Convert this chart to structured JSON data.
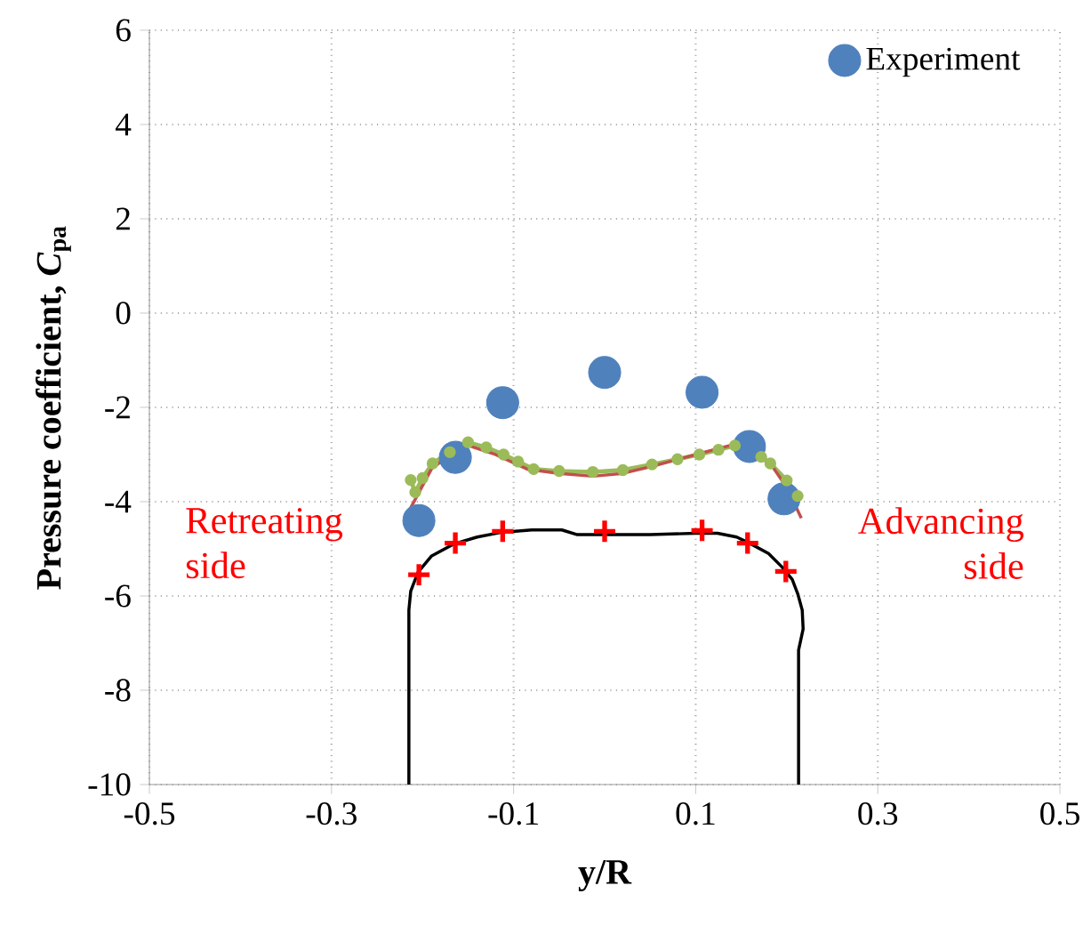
{
  "chart_data": {
    "type": "scatter",
    "xlabel": "y/R",
    "ylabel": "Pressure coefficient, *C*$_{pa}$",
    "xlim": [
      -0.5,
      0.5
    ],
    "ylim": [
      -10,
      6
    ],
    "xticks": [
      -0.5,
      -0.3,
      -0.1,
      0.1,
      0.3,
      0.5
    ],
    "yticks": [
      -10,
      -8,
      -6,
      -4,
      -2,
      0,
      2,
      4,
      6
    ],
    "grid": true,
    "legend": "top right",
    "annotations": [
      "Retreating side",
      "Advancing side"
    ],
    "series": [
      {
        "name": "Experiment",
        "marker": "circle",
        "color": "#4f81bd",
        "x": [
          -0.204,
          -0.164,
          -0.112,
          0.0,
          0.107,
          0.159,
          0.197
        ],
        "values": [
          -4.4,
          -3.06,
          -1.9,
          -1.26,
          -1.68,
          -2.83,
          -3.94
        ]
      },
      {
        "type": "line",
        "marker": "none",
        "color": "#c0504d",
        "x": [
          -0.213,
          -0.19,
          -0.154,
          -0.12,
          -0.085,
          -0.05,
          -0.013,
          0.02,
          0.052,
          0.1,
          0.143,
          0.182,
          0.2,
          0.216
        ],
        "values": [
          -4.13,
          -3.3,
          -2.78,
          -3.0,
          -3.31,
          -3.4,
          -3.46,
          -3.4,
          -3.25,
          -3.0,
          -2.78,
          -3.19,
          -3.7,
          -4.35
        ]
      },
      {
        "type": "line",
        "marker": "circle",
        "color": "#9bbb59",
        "x": [
          -0.213,
          -0.208,
          -0.2,
          -0.189,
          -0.17,
          -0.15,
          -0.13,
          -0.111,
          -0.095,
          -0.078,
          -0.05,
          -0.013,
          0.02,
          0.052,
          0.08,
          0.104,
          0.125,
          0.143,
          0.172,
          0.182,
          0.2,
          0.212
        ],
        "values": [
          -3.54,
          -3.8,
          -3.5,
          -3.19,
          -2.95,
          -2.74,
          -2.85,
          -3.0,
          -3.15,
          -3.31,
          -3.35,
          -3.37,
          -3.33,
          -3.21,
          -3.1,
          -3.0,
          -2.9,
          -2.81,
          -3.05,
          -3.19,
          -3.55,
          -3.88
        ]
      },
      {
        "type": "line",
        "marker": "none",
        "color": "#000000",
        "x": [
          -0.215,
          -0.215,
          -0.213,
          -0.205,
          -0.19,
          -0.166,
          -0.14,
          -0.113,
          -0.08,
          -0.047,
          -0.03,
          0.0,
          0.05,
          0.1,
          0.124,
          0.145,
          0.159,
          0.18,
          0.195,
          0.206,
          0.212,
          0.217,
          0.218,
          0.213,
          0.213
        ],
        "values": [
          -10,
          -6.3,
          -5.9,
          -5.5,
          -5.15,
          -4.9,
          -4.75,
          -4.65,
          -4.6,
          -4.6,
          -4.7,
          -4.7,
          -4.7,
          -4.67,
          -4.67,
          -4.75,
          -4.88,
          -5.1,
          -5.39,
          -5.65,
          -5.95,
          -6.3,
          -6.7,
          -7.15,
          -10
        ]
      },
      {
        "type": "scatter",
        "marker": "cross",
        "color": "#ff0000",
        "x": [
          -0.204,
          -0.164,
          -0.112,
          0.0,
          0.107,
          0.157,
          0.199
        ],
        "values": [
          -5.55,
          -4.88,
          -4.63,
          -4.63,
          -4.61,
          -4.88,
          -5.48
        ]
      }
    ]
  }
}
